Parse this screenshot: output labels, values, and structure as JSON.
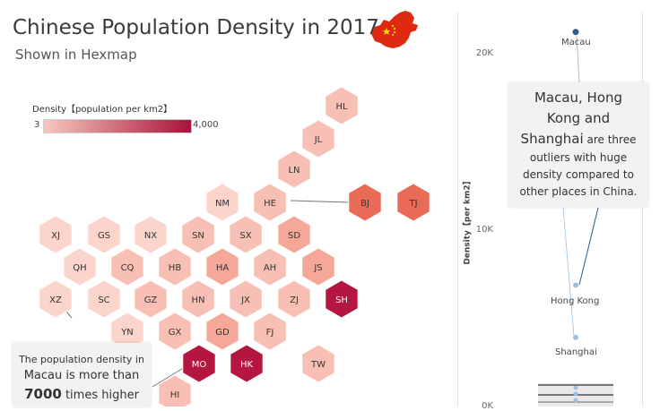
{
  "header": {
    "title": "Chinese Population Density in 2017",
    "subtitle": "Shown in Hexmap"
  },
  "legend": {
    "title": "Density【population per km2】",
    "min": "3",
    "max": "4,000",
    "color_low": "#f8c7bd",
    "color_high": "#a8123a"
  },
  "hexes": [
    {
      "code": "HL",
      "tone": 2
    },
    {
      "code": "JL",
      "tone": 2
    },
    {
      "code": "LN",
      "tone": 2
    },
    {
      "code": "NM",
      "tone": 1
    },
    {
      "code": "HE",
      "tone": 2
    },
    {
      "code": "BJ",
      "tone": 5
    },
    {
      "code": "TJ",
      "tone": 5
    },
    {
      "code": "XJ",
      "tone": 1
    },
    {
      "code": "GS",
      "tone": 1
    },
    {
      "code": "NX",
      "tone": 1
    },
    {
      "code": "SN",
      "tone": 2
    },
    {
      "code": "SX",
      "tone": 2
    },
    {
      "code": "SD",
      "tone": 3
    },
    {
      "code": "QH",
      "tone": 1
    },
    {
      "code": "CQ",
      "tone": 2
    },
    {
      "code": "HB",
      "tone": 2
    },
    {
      "code": "HA",
      "tone": 3
    },
    {
      "code": "AH",
      "tone": 2
    },
    {
      "code": "JS",
      "tone": 3
    },
    {
      "code": "XZ",
      "tone": 1
    },
    {
      "code": "SC",
      "tone": 1
    },
    {
      "code": "GZ",
      "tone": 2
    },
    {
      "code": "HN",
      "tone": 2
    },
    {
      "code": "JX",
      "tone": 2
    },
    {
      "code": "ZJ",
      "tone": 2
    },
    {
      "code": "SH",
      "tone": 6
    },
    {
      "code": "YN",
      "tone": 1
    },
    {
      "code": "GX",
      "tone": 2
    },
    {
      "code": "GD",
      "tone": 3
    },
    {
      "code": "FJ",
      "tone": 2
    },
    {
      "code": "MO",
      "tone": 6
    },
    {
      "code": "HK",
      "tone": 6
    },
    {
      "code": "TW",
      "tone": 2
    },
    {
      "code": "HI",
      "tone": 2
    }
  ],
  "annotation_left": {
    "line1": "The population density in",
    "line2_a": "Macau",
    "line2_b": " is more than",
    "line3_a": "7000",
    "line3_b": " times higher"
  },
  "annotation_right": {
    "line1": "Macau, Hong",
    "line2": "Kong and",
    "line3_a": "Shanghai",
    "line3_b": " are three",
    "line4": "outliers with huge",
    "line5": "density compared to",
    "line6": "other places in China."
  },
  "chart_data": {
    "type": "scatter",
    "ylabel": "Density【per km2】",
    "ylim": [
      0,
      22000
    ],
    "yticks": [
      "20K",
      "10K",
      "0K"
    ],
    "points": [
      {
        "label": "Macau",
        "y": 21300,
        "color": "#2e5a87"
      },
      {
        "label": "Hong Kong",
        "y": 6800,
        "color": "#9ebfe0"
      },
      {
        "label": "Shanghai",
        "y": 3800,
        "color": "#9ebfe0"
      }
    ]
  }
}
